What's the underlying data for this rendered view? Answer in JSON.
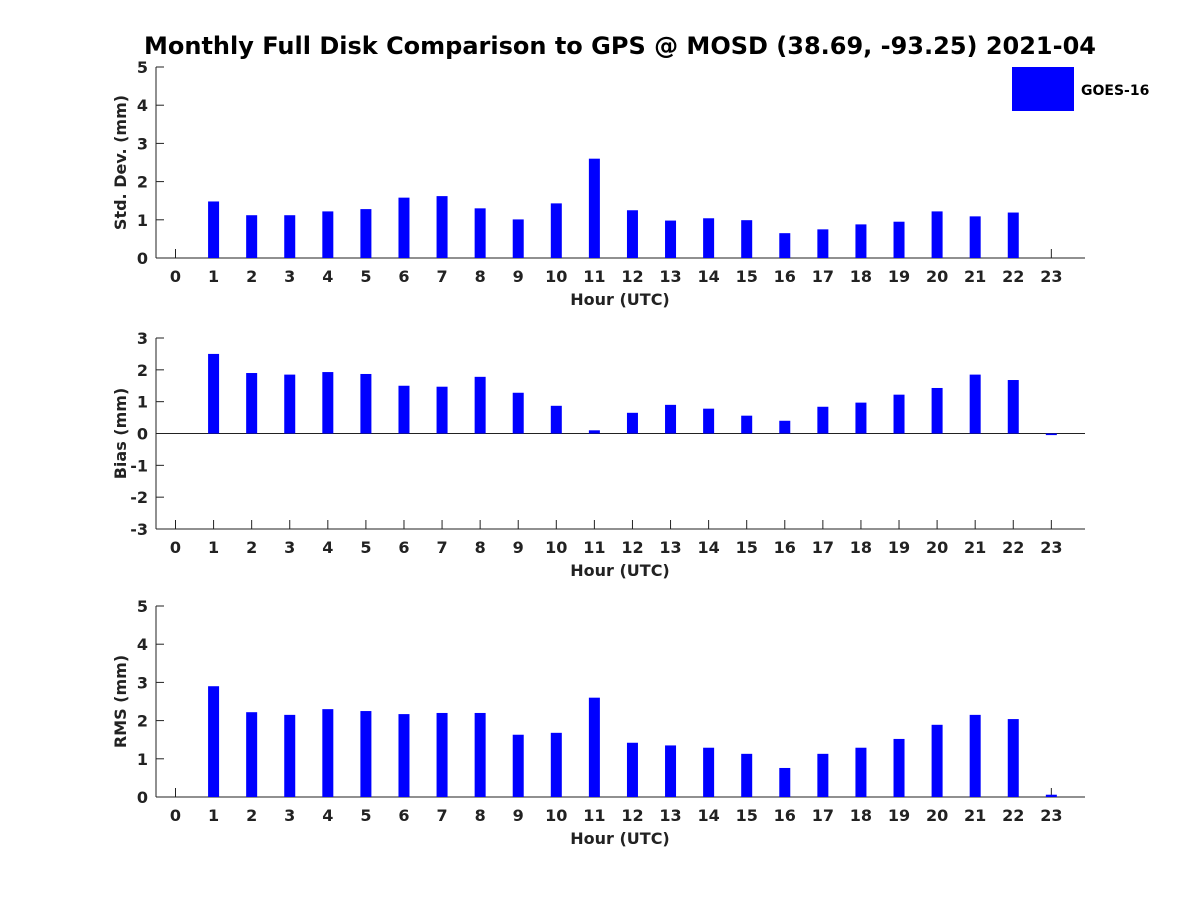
{
  "title": "Monthly Full Disk Comparison to GPS @ MOSD (38.69, -93.25) 2021-04",
  "legend": {
    "label": "GOES-16",
    "color": "#0000ff"
  },
  "colors": {
    "bar": "#0000ff",
    "axis": "#222222"
  },
  "chart_data": [
    {
      "type": "bar",
      "xlabel": "Hour (UTC)",
      "ylabel": "Std. Dev. (mm)",
      "ylim": [
        0,
        5
      ],
      "yticks": [
        0,
        1,
        2,
        3,
        4,
        5
      ],
      "x": [
        0,
        1,
        2,
        3,
        4,
        5,
        6,
        7,
        8,
        9,
        10,
        11,
        12,
        13,
        14,
        15,
        16,
        17,
        18,
        19,
        20,
        21,
        22,
        23
      ],
      "values": [
        null,
        1.48,
        1.12,
        1.12,
        1.22,
        1.28,
        1.58,
        1.62,
        1.3,
        1.01,
        1.43,
        2.6,
        1.25,
        0.98,
        1.04,
        0.99,
        0.65,
        0.75,
        0.88,
        0.95,
        1.22,
        1.09,
        1.19,
        null
      ]
    },
    {
      "type": "bar",
      "xlabel": "Hour (UTC)",
      "ylabel": "Bias (mm)",
      "ylim": [
        -3,
        3
      ],
      "yticks": [
        -3,
        -2,
        -1,
        0,
        1,
        2,
        3
      ],
      "x": [
        0,
        1,
        2,
        3,
        4,
        5,
        6,
        7,
        8,
        9,
        10,
        11,
        12,
        13,
        14,
        15,
        16,
        17,
        18,
        19,
        20,
        21,
        22,
        23
      ],
      "values": [
        null,
        2.5,
        1.9,
        1.85,
        1.93,
        1.87,
        1.5,
        1.47,
        1.78,
        1.28,
        0.87,
        0.1,
        0.65,
        0.9,
        0.78,
        0.56,
        0.4,
        0.84,
        0.97,
        1.22,
        1.43,
        1.85,
        1.68,
        -0.05
      ]
    },
    {
      "type": "bar",
      "xlabel": "Hour (UTC)",
      "ylabel": "RMS (mm)",
      "ylim": [
        0,
        5
      ],
      "yticks": [
        0,
        1,
        2,
        3,
        4,
        5
      ],
      "x": [
        0,
        1,
        2,
        3,
        4,
        5,
        6,
        7,
        8,
        9,
        10,
        11,
        12,
        13,
        14,
        15,
        16,
        17,
        18,
        19,
        20,
        21,
        22,
        23
      ],
      "values": [
        null,
        2.9,
        2.22,
        2.15,
        2.3,
        2.25,
        2.17,
        2.2,
        2.2,
        1.63,
        1.68,
        2.6,
        1.42,
        1.35,
        1.29,
        1.13,
        0.76,
        1.13,
        1.29,
        1.52,
        1.89,
        2.15,
        2.04,
        0.06
      ]
    }
  ]
}
